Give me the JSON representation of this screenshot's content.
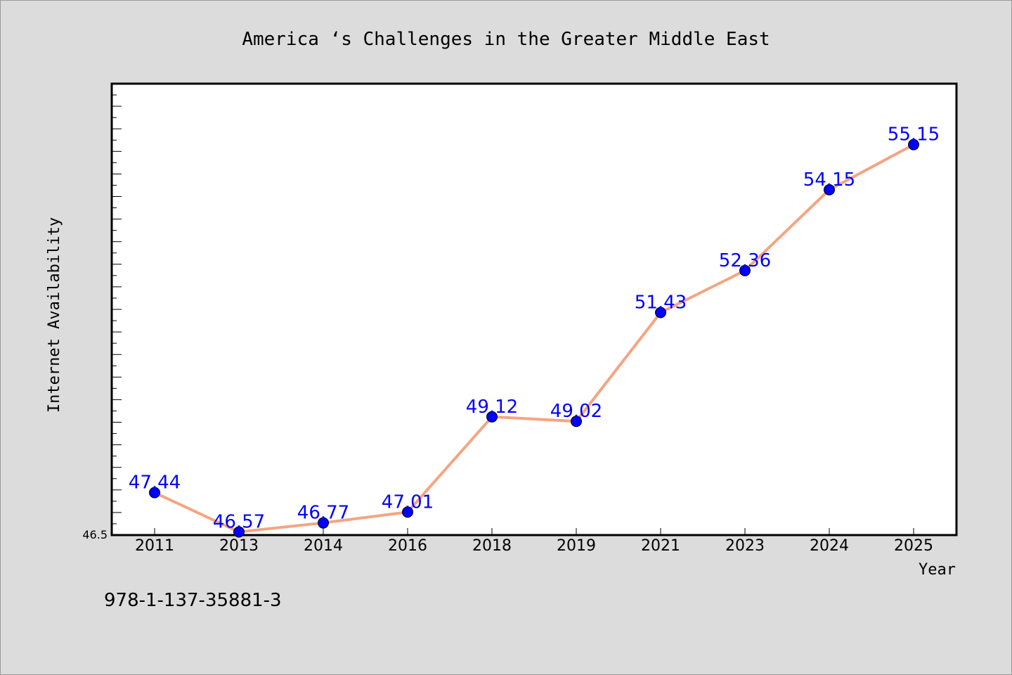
{
  "chart_data": {
    "type": "line",
    "title": "America ‘s Challenges in the Greater Middle East",
    "xlabel": "Year",
    "ylabel": "Internet Availability",
    "categories": [
      "2011",
      "2013",
      "2014",
      "2016",
      "2018",
      "2019",
      "2021",
      "2023",
      "2024",
      "2025"
    ],
    "series": [
      {
        "values": [
          47.44,
          46.57,
          46.77,
          47.01,
          49.12,
          49.02,
          51.43,
          52.36,
          54.15,
          55.15
        ]
      }
    ],
    "data_labels": [
      "47.44",
      "46.57",
      "46.77",
      "47.01",
      "49.12",
      "49.02",
      "51.43",
      "52.36",
      "54.15",
      "55.15"
    ],
    "ylim": [
      46.5,
      56.5
    ],
    "ytick_label": "46.5",
    "grid": false,
    "line_color": "#f4a582",
    "marker_color": "#0000ff",
    "label_color": "#0000ff",
    "footnote": "978-1-137-35881-3"
  }
}
